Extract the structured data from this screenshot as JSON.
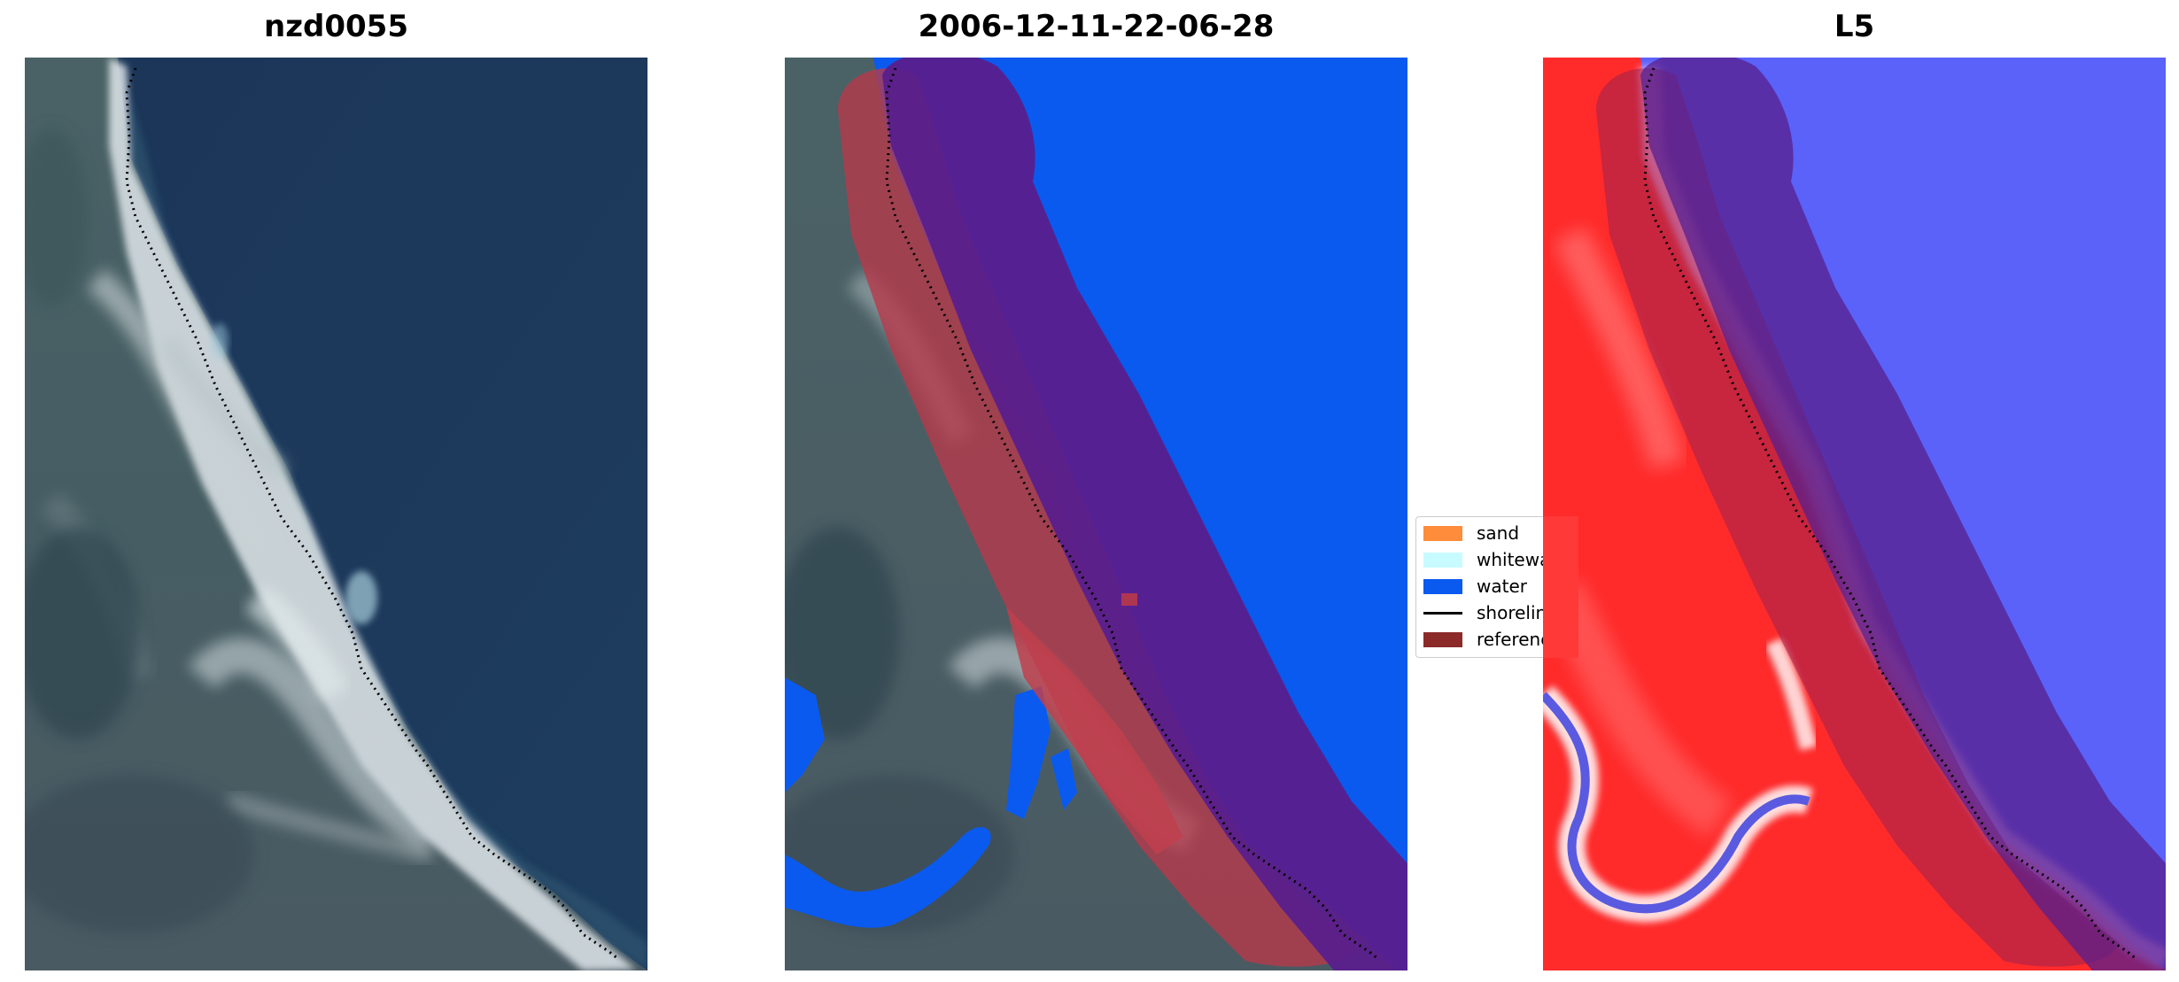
{
  "panels": [
    {
      "title": "nzd0055"
    },
    {
      "title": "2006-12-11-22-06-28"
    },
    {
      "title": "L5"
    }
  ],
  "legend": {
    "items": [
      {
        "label": "sand",
        "color": "#ff8c3b"
      },
      {
        "label": "whitewater",
        "color": "#c8fbff"
      },
      {
        "label": "water",
        "color": "#0a5af0"
      },
      {
        "label": "shoreline",
        "color": "#000000"
      },
      {
        "label": "reference",
        "color": "#8c2a2a"
      }
    ]
  },
  "colors": {
    "sea": "#1f3a5c",
    "land": "#3d5660",
    "beach": "#dfe6ea",
    "water_class": "#0a5af0",
    "buffer": "#5a1f8c",
    "reference_band": "#b8394a",
    "index_positive": "#ff2a2a",
    "index_negative": "#3a3aff"
  }
}
